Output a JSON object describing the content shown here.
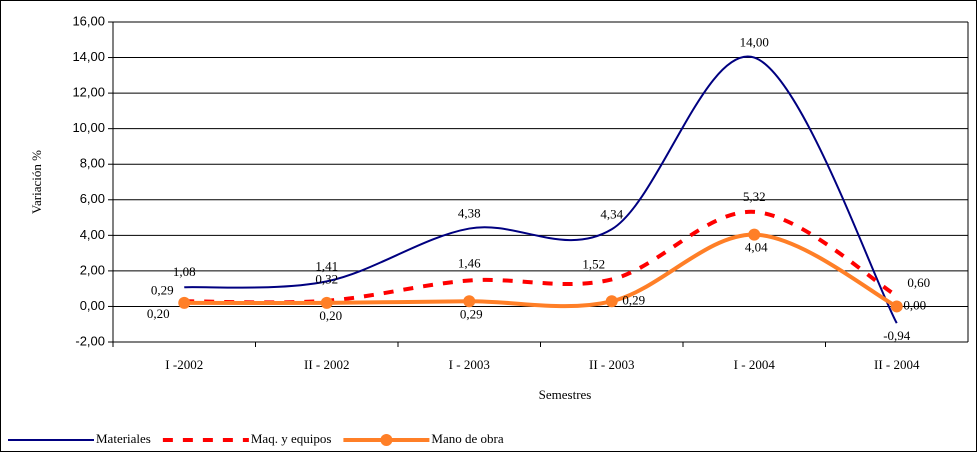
{
  "chart_data": {
    "type": "line",
    "y_label": "Variación %",
    "x_label": "Semestres",
    "categories": [
      "I -2002",
      "II - 2002",
      "I - 2003",
      "II - 2003",
      "I - 2004",
      "II - 2004"
    ],
    "series": [
      {
        "name": "Materiales",
        "color": "#000080",
        "values": [
          1.08,
          1.41,
          4.38,
          4.34,
          14.0,
          -0.94
        ],
        "value_labels": [
          "1,08",
          "1,41",
          "4,38",
          "4,34",
          "14,00",
          "-0,94"
        ]
      },
      {
        "name": "Maq. y equipos",
        "color": "#ff0000",
        "values": [
          0.29,
          0.32,
          1.46,
          1.52,
          5.32,
          0.6
        ],
        "value_labels": [
          "0,29",
          "0,32",
          "1,46",
          "1,52",
          "5,32",
          "0,60"
        ]
      },
      {
        "name": "Mano de obra",
        "color": "#ff7f27",
        "values": [
          0.2,
          0.2,
          0.29,
          0.29,
          4.04,
          0.0
        ],
        "value_labels": [
          "0,20",
          "0,20",
          "0,29",
          "0,29",
          "4,04",
          "0,00"
        ]
      }
    ],
    "ylim": [
      -2,
      16
    ],
    "yticks": [
      {
        "value": -2,
        "label": "-2,00"
      },
      {
        "value": 0,
        "label": "0,00"
      },
      {
        "value": 2,
        "label": "2,00"
      },
      {
        "value": 4,
        "label": "4,00"
      },
      {
        "value": 6,
        "label": "6,00"
      },
      {
        "value": 8,
        "label": "8,00"
      },
      {
        "value": 10,
        "label": "10,00"
      },
      {
        "value": 12,
        "label": "12,00"
      },
      {
        "value": 14,
        "label": "14,00"
      },
      {
        "value": 16,
        "label": "16,00"
      }
    ],
    "grid": true,
    "smooth": true,
    "legend": "bottom-left"
  }
}
